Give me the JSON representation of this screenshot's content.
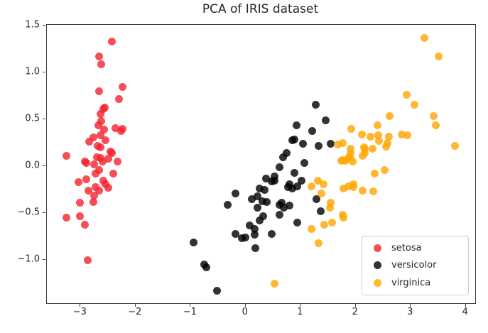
{
  "title": "PCA of IRIS dataset",
  "chart_data": {
    "type": "scatter",
    "title": "PCA of IRIS dataset",
    "xlabel": "",
    "ylabel": "",
    "xlim": [
      -3.61,
      4.17
    ],
    "ylim": [
      -1.46,
      1.51
    ],
    "grid": false,
    "legend_position": "lower right",
    "marker": "circle",
    "marker_alpha": 0.8,
    "xticks": {
      "values": [
        -3,
        -2,
        -1,
        0,
        1,
        2,
        3,
        4
      ],
      "labels": [
        "−3",
        "−2",
        "−1",
        "0",
        "1",
        "2",
        "3",
        "4"
      ]
    },
    "yticks": {
      "values": [
        -1.0,
        -0.5,
        0.0,
        0.5,
        1.0,
        1.5
      ],
      "labels": [
        "−1.0",
        "−0.5",
        "0.0",
        "0.5",
        "1.0",
        "1.5"
      ]
    },
    "series": [
      {
        "name": "setosa",
        "color": "#f5222d",
        "points": [
          [
            -2.43,
            1.33
          ],
          [
            -2.66,
            1.17
          ],
          [
            -2.62,
            1.09
          ],
          [
            -2.23,
            0.85
          ],
          [
            -2.66,
            0.8
          ],
          [
            -2.3,
            0.72
          ],
          [
            -2.56,
            0.63
          ],
          [
            -2.59,
            0.61
          ],
          [
            -2.64,
            0.56
          ],
          [
            -2.62,
            0.48
          ],
          [
            -2.68,
            0.44
          ],
          [
            -2.36,
            0.41
          ],
          [
            -2.24,
            0.4
          ],
          [
            -2.57,
            0.39
          ],
          [
            -2.26,
            0.38
          ],
          [
            -2.63,
            0.33
          ],
          [
            -2.77,
            0.31
          ],
          [
            -2.84,
            0.26
          ],
          [
            -2.55,
            0.28
          ],
          [
            -2.69,
            0.22
          ],
          [
            -2.63,
            0.2
          ],
          [
            -2.45,
            0.16
          ],
          [
            -2.43,
            0.14
          ],
          [
            -3.25,
            0.11
          ],
          [
            -2.7,
            0.1
          ],
          [
            -2.64,
            0.09
          ],
          [
            -2.49,
            0.08
          ],
          [
            -2.92,
            0.05
          ],
          [
            -2.33,
            0.05
          ],
          [
            -2.9,
            0.04
          ],
          [
            -2.75,
            0.02
          ],
          [
            -2.6,
            0.05
          ],
          [
            -2.66,
            -0.04
          ],
          [
            -2.72,
            -0.08
          ],
          [
            -2.41,
            -0.08
          ],
          [
            -2.89,
            -0.14
          ],
          [
            -2.59,
            -0.15
          ],
          [
            -3.03,
            -0.17
          ],
          [
            -2.54,
            -0.19
          ],
          [
            -2.5,
            -0.23
          ],
          [
            -2.73,
            -0.22
          ],
          [
            -2.86,
            -0.26
          ],
          [
            -2.66,
            -0.26
          ],
          [
            -2.75,
            -0.31
          ],
          [
            -3.01,
            -0.39
          ],
          [
            -2.76,
            -0.38
          ],
          [
            -3.26,
            -0.55
          ],
          [
            -3.01,
            -0.53
          ],
          [
            -2.92,
            -0.62
          ],
          [
            -2.87,
            -1.0
          ]
        ]
      },
      {
        "name": "versicolor",
        "color": "#000000",
        "points": [
          [
            1.27,
            0.66
          ],
          [
            1.46,
            0.49
          ],
          [
            0.93,
            0.44
          ],
          [
            1.21,
            0.38
          ],
          [
            0.89,
            0.29
          ],
          [
            0.85,
            0.28
          ],
          [
            1.04,
            0.24
          ],
          [
            1.33,
            0.22
          ],
          [
            1.54,
            0.24
          ],
          [
            0.75,
            0.14
          ],
          [
            0.68,
            0.1
          ],
          [
            1.07,
            0.04
          ],
          [
            0.62,
            -0.01
          ],
          [
            0.88,
            -0.07
          ],
          [
            0.52,
            -0.11
          ],
          [
            0.47,
            -0.16
          ],
          [
            1.02,
            -0.15
          ],
          [
            0.8,
            -0.19
          ],
          [
            0.94,
            -0.21
          ],
          [
            0.85,
            -0.24
          ],
          [
            0.37,
            -0.13
          ],
          [
            0.52,
            -0.15
          ],
          [
            0.77,
            -0.22
          ],
          [
            0.26,
            -0.24
          ],
          [
            0.34,
            -0.25
          ],
          [
            -0.19,
            -0.29
          ],
          [
            0.11,
            -0.35
          ],
          [
            0.21,
            -0.32
          ],
          [
            0.3,
            -0.37
          ],
          [
            0.38,
            -0.38
          ],
          [
            -0.32,
            -0.41
          ],
          [
            0.22,
            -0.44
          ],
          [
            0.62,
            -0.41
          ],
          [
            0.69,
            -0.44
          ],
          [
            0.61,
            -0.52
          ],
          [
            0.32,
            -0.53
          ],
          [
            0.26,
            -0.58
          ],
          [
            0.07,
            -0.63
          ],
          [
            0.17,
            -0.67
          ],
          [
            1.29,
            -0.35
          ],
          [
            0.65,
            -0.39
          ],
          [
            0.8,
            -0.42
          ],
          [
            1.37,
            -0.48
          ],
          [
            0.94,
            -0.6
          ],
          [
            -0.94,
            -0.81
          ],
          [
            -0.19,
            -0.72
          ],
          [
            -0.07,
            -0.77
          ],
          [
            0.0,
            -0.76
          ],
          [
            0.16,
            -0.73
          ],
          [
            0.47,
            -0.72
          ],
          [
            0.18,
            -0.87
          ],
          [
            -0.75,
            -1.05
          ],
          [
            -0.71,
            -1.08
          ],
          [
            -0.52,
            -1.33
          ]
        ]
      },
      {
        "name": "virginica",
        "color": "#ffa500",
        "points": [
          [
            3.25,
            1.37
          ],
          [
            3.51,
            1.17
          ],
          [
            2.93,
            0.76
          ],
          [
            3.07,
            0.66
          ],
          [
            2.62,
            0.54
          ],
          [
            3.41,
            0.54
          ],
          [
            3.46,
            0.44
          ],
          [
            2.39,
            0.44
          ],
          [
            1.92,
            0.4
          ],
          [
            2.11,
            0.34
          ],
          [
            2.27,
            0.32
          ],
          [
            2.41,
            0.33
          ],
          [
            2.42,
            0.27
          ],
          [
            2.58,
            0.25
          ],
          [
            2.6,
            0.32
          ],
          [
            2.84,
            0.34
          ],
          [
            2.94,
            0.33
          ],
          [
            2.55,
            0.21
          ],
          [
            3.8,
            0.22
          ],
          [
            1.76,
            0.25
          ],
          [
            2.15,
            0.2
          ],
          [
            2.3,
            0.19
          ],
          [
            1.91,
            0.19
          ],
          [
            2.17,
            0.19
          ],
          [
            1.67,
            0.23
          ],
          [
            1.89,
            0.1
          ],
          [
            1.81,
            0.06
          ],
          [
            1.94,
            0.05
          ],
          [
            2.13,
            0.11
          ],
          [
            2.17,
            0.14
          ],
          [
            1.74,
            0.06
          ],
          [
            1.9,
            0.14
          ],
          [
            1.87,
            0.09
          ],
          [
            1.77,
            0.07
          ],
          [
            2.34,
            -0.08
          ],
          [
            2.53,
            -0.04
          ],
          [
            1.78,
            -0.24
          ],
          [
            1.96,
            -0.22
          ],
          [
            2.12,
            -0.26
          ],
          [
            2.32,
            -0.27
          ],
          [
            1.31,
            -0.15
          ],
          [
            1.42,
            -0.19
          ],
          [
            1.2,
            -0.21
          ],
          [
            1.38,
            -0.29
          ],
          [
            1.87,
            -0.21
          ],
          [
            1.96,
            -0.19
          ],
          [
            1.54,
            -0.39
          ],
          [
            1.53,
            -0.44
          ],
          [
            1.76,
            -0.52
          ],
          [
            1.2,
            -0.67
          ],
          [
            1.43,
            -0.62
          ],
          [
            1.57,
            -0.6
          ],
          [
            1.78,
            -0.55
          ],
          [
            1.33,
            -0.82
          ],
          [
            0.52,
            -1.25
          ]
        ]
      }
    ]
  },
  "legend": {
    "items": [
      {
        "label": "setosa",
        "color": "#f5222d"
      },
      {
        "label": "versicolor",
        "color": "#000000"
      },
      {
        "label": "virginica",
        "color": "#ffa500"
      }
    ]
  }
}
